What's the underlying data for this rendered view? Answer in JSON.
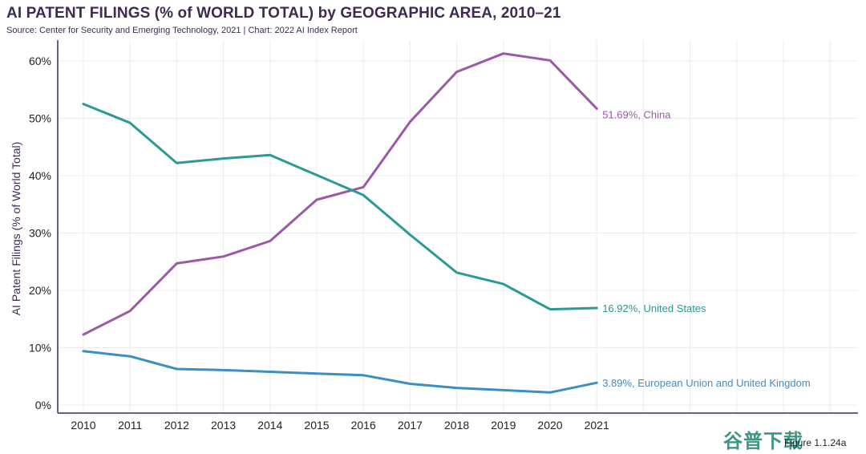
{
  "header": {
    "title": "AI PATENT FILINGS (% of WORLD TOTAL) by GEOGRAPHIC AREA, 2010–21",
    "subtitle": "Source: Center for Security and Emerging Technology, 2021 | Chart: 2022 AI Index Report"
  },
  "footer": {
    "figure_label": "Figure 1.1.24a",
    "watermark": "谷普下载"
  },
  "chart_data": {
    "type": "line",
    "title": "AI PATENT FILINGS (% of WORLD TOTAL) by GEOGRAPHIC AREA, 2010–21",
    "xlabel": "",
    "ylabel": "AI Patent Filings (% of World Total)",
    "ylim": [
      0,
      65
    ],
    "yticks": [
      0,
      10,
      20,
      30,
      40,
      50,
      60
    ],
    "ytick_labels": [
      "0%",
      "10%",
      "20%",
      "30%",
      "40%",
      "50%",
      "60%"
    ],
    "x": [
      "2010",
      "2011",
      "2012",
      "2013",
      "2014",
      "2015",
      "2016",
      "2017",
      "2018",
      "2019",
      "2020",
      "2021"
    ],
    "series": [
      {
        "name": "China",
        "color": "#9b59a8",
        "label": "51.69%, China",
        "values": [
          12.3,
          16.4,
          24.7,
          25.9,
          28.6,
          35.8,
          38.0,
          49.4,
          58.1,
          61.3,
          60.1,
          51.69
        ]
      },
      {
        "name": "United States",
        "color": "#2b9a94",
        "label": "16.92%, United States",
        "values": [
          52.5,
          49.2,
          42.2,
          43.0,
          43.6,
          40.1,
          36.6,
          29.7,
          23.1,
          21.1,
          16.7,
          16.92
        ]
      },
      {
        "name": "European Union and United Kingdom",
        "color": "#3b8fc4",
        "label": "3.89%, European Union and United Kingdom",
        "values": [
          9.4,
          8.5,
          6.3,
          6.1,
          5.8,
          5.5,
          5.2,
          3.7,
          3.0,
          2.6,
          2.2,
          3.89
        ]
      }
    ]
  }
}
